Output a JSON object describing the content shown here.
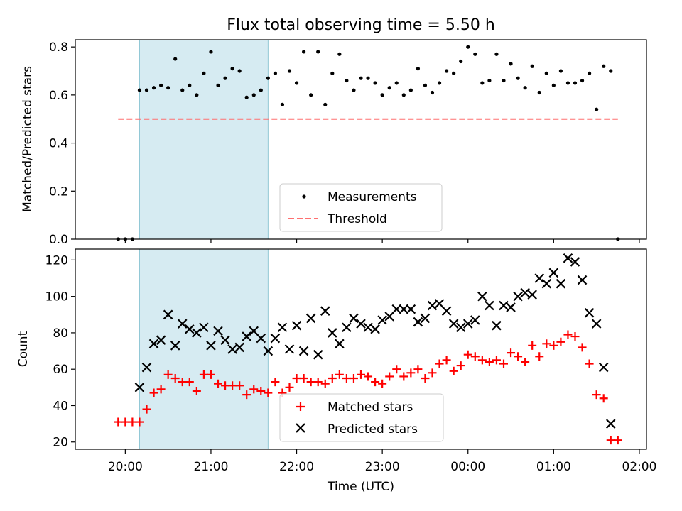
{
  "chart_data": [
    {
      "type": "scatter",
      "title": "Flux total observing time = 5.50 h",
      "ylabel": "Matched/Predicted stars",
      "xlabel": "",
      "ylim": [
        0,
        0.83
      ],
      "yticks": [
        0.0,
        0.2,
        0.4,
        0.6,
        0.8
      ],
      "ytick_labels": [
        "0.0",
        "0.2",
        "0.4",
        "0.6",
        "0.8"
      ],
      "grid": false,
      "legend_position": "lower-center",
      "observing_window": [
        "20:10",
        "21:40"
      ],
      "series": [
        {
          "name": "Measurements",
          "marker": "dot",
          "color": "#000000",
          "points": [
            [
              "19:55",
              0.0
            ],
            [
              "20:00",
              0.0
            ],
            [
              "20:05",
              0.0
            ],
            [
              "20:10",
              0.62
            ],
            [
              "20:15",
              0.62
            ],
            [
              "20:20",
              0.63
            ],
            [
              "20:25",
              0.64
            ],
            [
              "20:30",
              0.63
            ],
            [
              "20:35",
              0.75
            ],
            [
              "20:40",
              0.62
            ],
            [
              "20:45",
              0.64
            ],
            [
              "20:50",
              0.6
            ],
            [
              "20:55",
              0.69
            ],
            [
              "21:00",
              0.78
            ],
            [
              "21:05",
              0.64
            ],
            [
              "21:10",
              0.67
            ],
            [
              "21:15",
              0.71
            ],
            [
              "21:20",
              0.7
            ],
            [
              "21:25",
              0.59
            ],
            [
              "21:30",
              0.6
            ],
            [
              "21:35",
              0.62
            ],
            [
              "21:40",
              0.67
            ],
            [
              "21:45",
              0.69
            ],
            [
              "21:50",
              0.56
            ],
            [
              "21:55",
              0.7
            ],
            [
              "22:00",
              0.65
            ],
            [
              "22:05",
              0.78
            ],
            [
              "22:10",
              0.6
            ],
            [
              "22:15",
              0.78
            ],
            [
              "22:20",
              0.56
            ],
            [
              "22:25",
              0.69
            ],
            [
              "22:30",
              0.77
            ],
            [
              "22:35",
              0.66
            ],
            [
              "22:40",
              0.62
            ],
            [
              "22:45",
              0.67
            ],
            [
              "22:50",
              0.67
            ],
            [
              "22:55",
              0.65
            ],
            [
              "23:00",
              0.6
            ],
            [
              "23:05",
              0.63
            ],
            [
              "23:10",
              0.65
            ],
            [
              "23:15",
              0.6
            ],
            [
              "23:20",
              0.62
            ],
            [
              "23:25",
              0.71
            ],
            [
              "23:30",
              0.64
            ],
            [
              "23:35",
              0.61
            ],
            [
              "23:40",
              0.65
            ],
            [
              "23:45",
              0.7
            ],
            [
              "23:50",
              0.69
            ],
            [
              "23:55",
              0.74
            ],
            [
              "00:00",
              0.8
            ],
            [
              "00:05",
              0.77
            ],
            [
              "00:10",
              0.65
            ],
            [
              "00:15",
              0.66
            ],
            [
              "00:20",
              0.77
            ],
            [
              "00:25",
              0.66
            ],
            [
              "00:30",
              0.73
            ],
            [
              "00:35",
              0.67
            ],
            [
              "00:40",
              0.63
            ],
            [
              "00:45",
              0.72
            ],
            [
              "00:50",
              0.61
            ],
            [
              "00:55",
              0.69
            ],
            [
              "01:00",
              0.64
            ],
            [
              "01:05",
              0.7
            ],
            [
              "01:10",
              0.65
            ],
            [
              "01:15",
              0.65
            ],
            [
              "01:20",
              0.66
            ],
            [
              "01:25",
              0.69
            ],
            [
              "01:30",
              0.54
            ],
            [
              "01:35",
              0.72
            ],
            [
              "01:40",
              0.7
            ],
            [
              "01:45",
              0.0
            ]
          ]
        },
        {
          "name": "Threshold",
          "style": "dashed",
          "color": "#ff7070",
          "x": [
            "19:55",
            "01:45"
          ],
          "y": [
            0.5,
            0.5
          ]
        }
      ]
    },
    {
      "type": "scatter",
      "title": "",
      "ylabel": "Count",
      "xlabel": "Time (UTC)",
      "ylim": [
        16,
        126
      ],
      "yticks": [
        20,
        40,
        60,
        80,
        100,
        120
      ],
      "ytick_labels": [
        "20",
        "40",
        "60",
        "80",
        "100",
        "120"
      ],
      "xticks": [
        "20:00",
        "21:00",
        "22:00",
        "23:00",
        "00:00",
        "01:00",
        "02:00"
      ],
      "xtick_labels": [
        "20:00",
        "21:00",
        "22:00",
        "23:00",
        "00:00",
        "01:00",
        "02:00"
      ],
      "grid": false,
      "legend_position": "lower-center",
      "series": [
        {
          "name": "Matched stars",
          "marker": "plus",
          "color": "#ff0000",
          "points": [
            [
              "19:55",
              31
            ],
            [
              "20:00",
              31
            ],
            [
              "20:05",
              31
            ],
            [
              "20:10",
              31
            ],
            [
              "20:15",
              38
            ],
            [
              "20:20",
              47
            ],
            [
              "20:25",
              49
            ],
            [
              "20:30",
              57
            ],
            [
              "20:35",
              55
            ],
            [
              "20:40",
              53
            ],
            [
              "20:45",
              53
            ],
            [
              "20:50",
              48
            ],
            [
              "20:55",
              57
            ],
            [
              "21:00",
              57
            ],
            [
              "21:05",
              52
            ],
            [
              "21:10",
              51
            ],
            [
              "21:15",
              51
            ],
            [
              "21:20",
              51
            ],
            [
              "21:25",
              46
            ],
            [
              "21:30",
              49
            ],
            [
              "21:35",
              48
            ],
            [
              "21:40",
              47
            ],
            [
              "21:45",
              53
            ],
            [
              "21:50",
              47
            ],
            [
              "21:55",
              50
            ],
            [
              "22:00",
              55
            ],
            [
              "22:05",
              55
            ],
            [
              "22:10",
              53
            ],
            [
              "22:15",
              53
            ],
            [
              "22:20",
              52
            ],
            [
              "22:25",
              55
            ],
            [
              "22:30",
              57
            ],
            [
              "22:35",
              55
            ],
            [
              "22:40",
              55
            ],
            [
              "22:45",
              57
            ],
            [
              "22:50",
              56
            ],
            [
              "22:55",
              53
            ],
            [
              "23:00",
              52
            ],
            [
              "23:05",
              56
            ],
            [
              "23:10",
              60
            ],
            [
              "23:15",
              56
            ],
            [
              "23:20",
              58
            ],
            [
              "23:25",
              60
            ],
            [
              "23:30",
              55
            ],
            [
              "23:35",
              58
            ],
            [
              "23:40",
              63
            ],
            [
              "23:45",
              65
            ],
            [
              "23:50",
              59
            ],
            [
              "23:55",
              62
            ],
            [
              "00:00",
              68
            ],
            [
              "00:05",
              67
            ],
            [
              "00:10",
              65
            ],
            [
              "00:15",
              64
            ],
            [
              "00:20",
              65
            ],
            [
              "00:25",
              63
            ],
            [
              "00:30",
              69
            ],
            [
              "00:35",
              67
            ],
            [
              "00:40",
              64
            ],
            [
              "00:45",
              73
            ],
            [
              "00:50",
              67
            ],
            [
              "00:55",
              74
            ],
            [
              "01:00",
              73
            ],
            [
              "01:05",
              75
            ],
            [
              "01:10",
              79
            ],
            [
              "01:15",
              78
            ],
            [
              "01:20",
              72
            ],
            [
              "01:25",
              63
            ],
            [
              "01:30",
              46
            ],
            [
              "01:35",
              44
            ],
            [
              "01:40",
              21
            ],
            [
              "01:45",
              21
            ]
          ]
        },
        {
          "name": "Predicted stars",
          "marker": "x",
          "color": "#000000",
          "points": [
            [
              "20:10",
              50
            ],
            [
              "20:15",
              61
            ],
            [
              "20:20",
              74
            ],
            [
              "20:25",
              76
            ],
            [
              "20:30",
              90
            ],
            [
              "20:35",
              73
            ],
            [
              "20:40",
              85
            ],
            [
              "20:45",
              82
            ],
            [
              "20:50",
              80
            ],
            [
              "20:55",
              83
            ],
            [
              "21:00",
              73
            ],
            [
              "21:05",
              81
            ],
            [
              "21:10",
              76
            ],
            [
              "21:15",
              71
            ],
            [
              "21:20",
              72
            ],
            [
              "21:25",
              78
            ],
            [
              "21:30",
              81
            ],
            [
              "21:35",
              77
            ],
            [
              "21:40",
              70
            ],
            [
              "21:45",
              77
            ],
            [
              "21:50",
              83
            ],
            [
              "21:55",
              71
            ],
            [
              "22:00",
              84
            ],
            [
              "22:05",
              70
            ],
            [
              "22:10",
              88
            ],
            [
              "22:15",
              68
            ],
            [
              "22:20",
              92
            ],
            [
              "22:25",
              80
            ],
            [
              "22:30",
              74
            ],
            [
              "22:35",
              83
            ],
            [
              "22:40",
              88
            ],
            [
              "22:45",
              85
            ],
            [
              "22:50",
              83
            ],
            [
              "22:55",
              82
            ],
            [
              "23:00",
              87
            ],
            [
              "23:05",
              89
            ],
            [
              "23:10",
              93
            ],
            [
              "23:15",
              93
            ],
            [
              "23:20",
              93
            ],
            [
              "23:25",
              86
            ],
            [
              "23:30",
              88
            ],
            [
              "23:35",
              95
            ],
            [
              "23:40",
              96
            ],
            [
              "23:45",
              92
            ],
            [
              "23:50",
              85
            ],
            [
              "23:55",
              83
            ],
            [
              "00:00",
              85
            ],
            [
              "00:05",
              87
            ],
            [
              "00:10",
              100
            ],
            [
              "00:15",
              95
            ],
            [
              "00:20",
              84
            ],
            [
              "00:25",
              95
            ],
            [
              "00:30",
              94
            ],
            [
              "00:35",
              100
            ],
            [
              "00:40",
              102
            ],
            [
              "00:45",
              101
            ],
            [
              "00:50",
              110
            ],
            [
              "00:55",
              107
            ],
            [
              "01:00",
              113
            ],
            [
              "01:05",
              107
            ],
            [
              "01:10",
              121
            ],
            [
              "01:15",
              119
            ],
            [
              "01:20",
              109
            ],
            [
              "01:25",
              91
            ],
            [
              "01:30",
              85
            ],
            [
              "01:35",
              61
            ],
            [
              "01:40",
              30
            ]
          ]
        }
      ]
    }
  ]
}
